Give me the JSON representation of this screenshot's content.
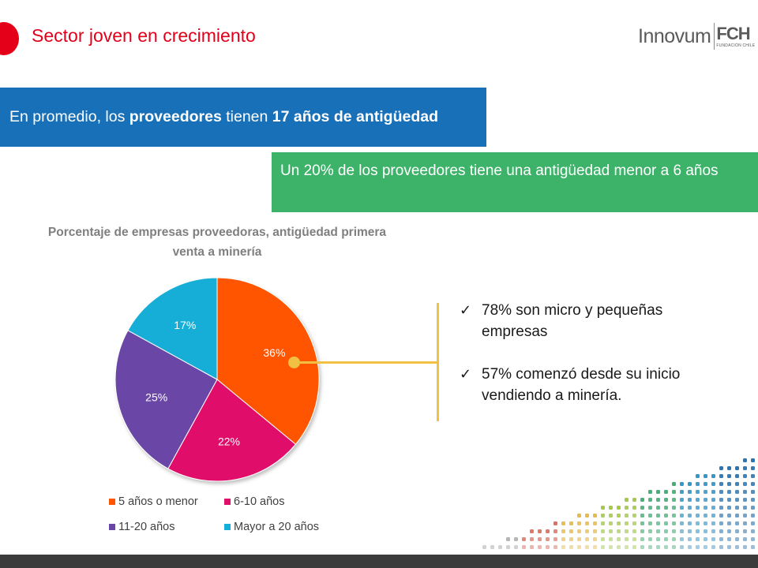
{
  "slide": {
    "title": "Sector joven en crecimiento"
  },
  "logo": {
    "main": "Innovum",
    "fch": "FCH",
    "fch_sub": "FUNDACIÓN CHILE"
  },
  "banner_blue": {
    "text_1": "En promedio, los ",
    "bold_1": "proveedores",
    "text_2": " tienen ",
    "bold_2": "17 años de antigüedad"
  },
  "banner_green": {
    "text": "Un 20% de los proveedores tiene una antigüedad menor a 6 años"
  },
  "bullets": [
    {
      "text": "78% son micro y pequeñas empresas"
    },
    {
      "text": "57% comenzó desde su inicio vendiendo a minería."
    }
  ],
  "colors": {
    "title_red": "#e2001a",
    "banner_blue": "#1870b8",
    "banner_green": "#3db36a",
    "connector": "#f2c143"
  },
  "icons": {
    "bullet": "check-icon"
  },
  "chart_data": {
    "type": "pie",
    "title": "Porcentaje de empresas proveedoras, antigüedad primera venta a minería",
    "legend_position": "bottom",
    "slices": [
      {
        "label": "5 años o menor",
        "value": 36,
        "value_label": "36%",
        "color": "#ff5500"
      },
      {
        "label": "6-10 años",
        "value": 22,
        "value_label": "22%",
        "color": "#e0106a"
      },
      {
        "label": "11-20 años",
        "value": 25,
        "value_label": "25%",
        "color": "#6a46a6"
      },
      {
        "label": "Mayor a 20 años",
        "value": 17,
        "value_label": "17%",
        "color": "#14aed6"
      }
    ]
  }
}
